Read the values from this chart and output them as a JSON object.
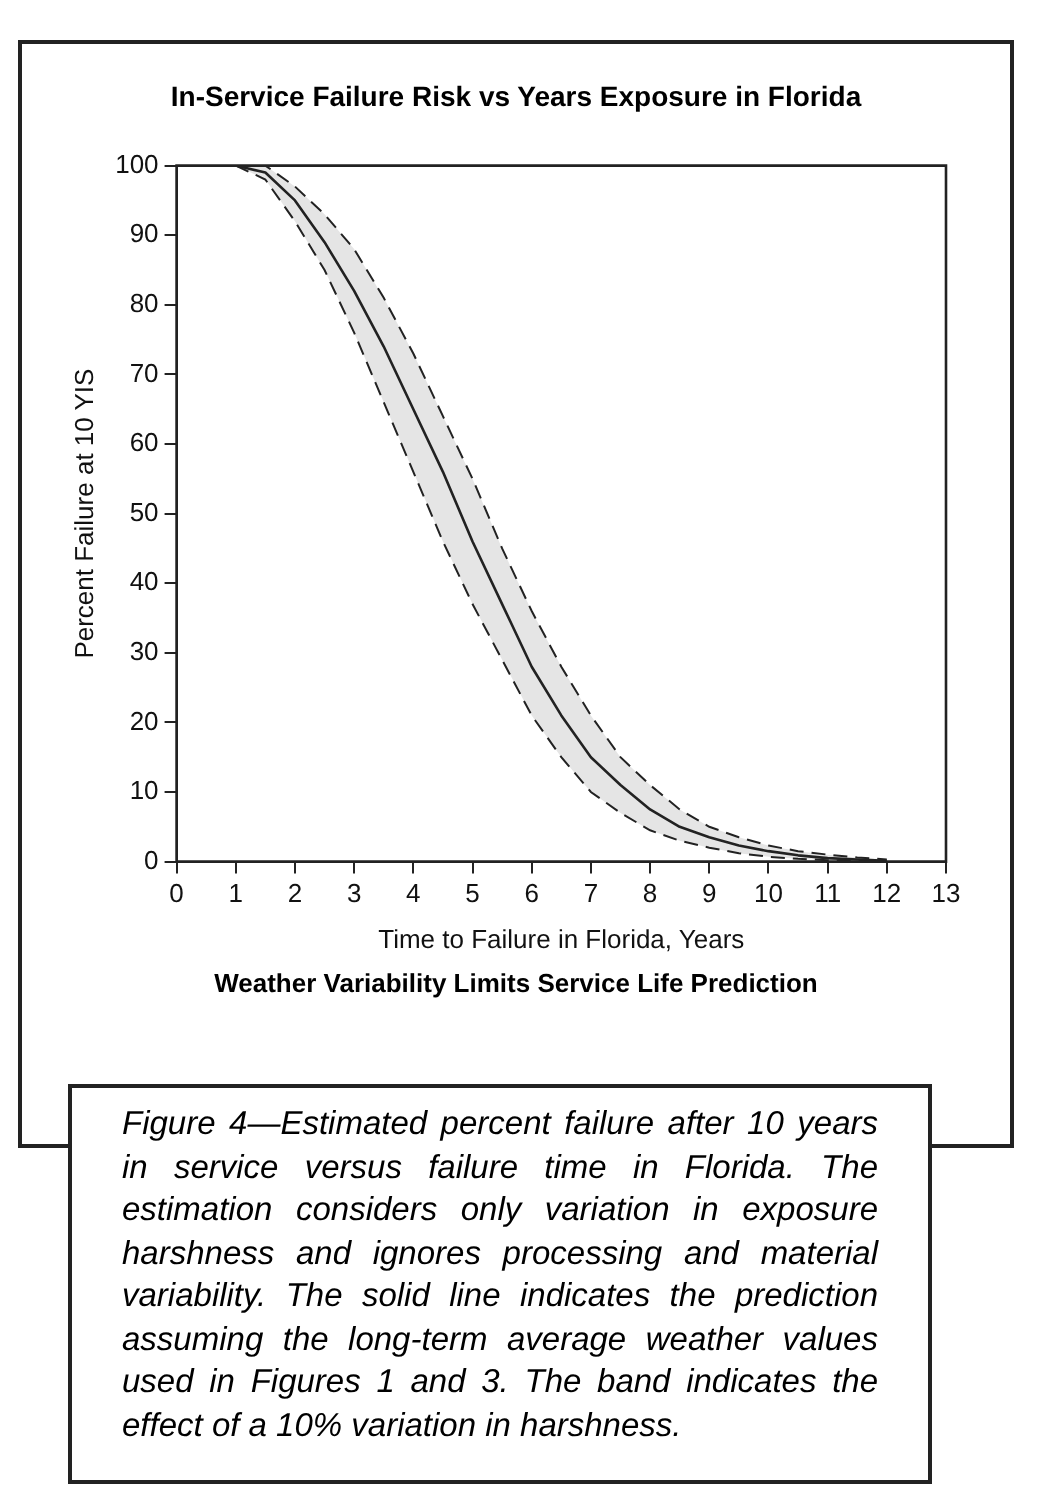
{
  "chart_data": {
    "type": "line",
    "title": "In-Service Failure Risk vs Years Exposure in Florida",
    "xlabel": "Time to Failure in Florida, Years",
    "ylabel": "Percent Failure at 10 YIS",
    "x": [
      1,
      1.5,
      2,
      2.5,
      3,
      3.5,
      4,
      4.5,
      5,
      5.5,
      6,
      6.5,
      7,
      7.5,
      8,
      8.5,
      9,
      9.5,
      10,
      10.5,
      11,
      11.5,
      12
    ],
    "series": [
      {
        "color": "#222222",
        "line_style": "solid",
        "values": [
          100,
          99,
          95,
          89,
          82,
          74,
          65,
          56,
          46,
          37,
          28,
          21,
          15,
          11,
          7.5,
          5,
          3.5,
          2.3,
          1.5,
          0.9,
          0.5,
          0.3,
          0.1
        ],
        "lower": [
          100,
          98,
          92,
          85,
          76,
          66,
          56,
          46,
          37,
          29,
          21,
          15,
          10,
          7,
          4.5,
          3,
          2,
          1.2,
          0.7,
          0.4,
          0.2,
          0.1,
          0
        ],
        "upper": [
          100,
          100,
          97,
          93,
          88,
          81,
          73,
          64,
          55,
          45,
          36,
          28,
          21,
          15,
          11,
          7.5,
          5,
          3.5,
          2.3,
          1.5,
          1,
          0.6,
          0.3
        ]
      }
    ],
    "xlim": [
      0,
      13
    ],
    "xticks": [
      0,
      1,
      2,
      3,
      4,
      5,
      6,
      7,
      8,
      9,
      10,
      11,
      12,
      13
    ],
    "ylim": [
      0,
      100
    ],
    "yticks": [
      0,
      10,
      20,
      30,
      40,
      50,
      60,
      70,
      80,
      90,
      100
    ],
    "grid": false,
    "legend": false,
    "marker": "none",
    "annotations": [
      "Weather Variability Limits Service Life Prediction",
      "Figure 4—Estimated percent failure after 10 years in service versus failure time in Florida. The estimation considers only variation in exposure harshness and ignores processing and material variability. The solid line indicates the prediction assuming the long-term average weather values used in Figures 1 and 3. The band indicates the effect of a 10% variation in harshness."
    ]
  }
}
